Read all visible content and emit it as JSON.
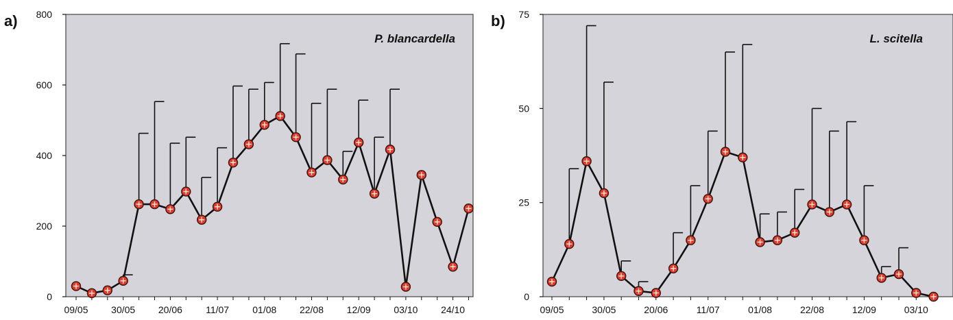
{
  "chart_data": [
    {
      "type": "line",
      "panel_label": "a)",
      "title": "P. blancardella",
      "xlabel": "",
      "ylabel": "",
      "ylim": [
        0,
        800
      ],
      "yticks": [
        "0",
        "200",
        "400",
        "600",
        "800"
      ],
      "x_tick_labels": [
        "09/05",
        "30/05",
        "20/06",
        "11/07",
        "01/08",
        "22/08",
        "12/09",
        "03/10",
        "24/10"
      ],
      "grid": false,
      "plot_background": "#d5d4da",
      "line_color": "#111111",
      "marker_color": "#e23b2a",
      "series": [
        {
          "x": [
            "09/05",
            "16/05",
            "23/05",
            "30/05",
            "06/06",
            "13/06",
            "20/06",
            "27/06",
            "04/07",
            "11/07",
            "18/07",
            "25/07",
            "01/08",
            "08/08",
            "15/08",
            "22/08",
            "29/08",
            "05/09",
            "12/09",
            "19/09",
            "26/09",
            "03/10",
            "10/10",
            "17/10",
            "24/10",
            "31/10"
          ],
          "values": [
            30,
            10,
            18,
            45,
            262,
            262,
            248,
            298,
            218,
            255,
            380,
            432,
            487,
            512,
            452,
            352,
            387,
            332,
            437,
            292,
            417,
            28,
            345,
            212,
            85,
            250
          ],
          "error_upper": [
            null,
            null,
            null,
            62,
            463,
            553,
            435,
            452,
            338,
            422,
            597,
            588,
            607,
            717,
            688,
            548,
            588,
            412,
            557,
            452,
            588,
            null,
            null,
            null,
            null,
            null
          ]
        }
      ]
    },
    {
      "type": "line",
      "panel_label": "b)",
      "title": "L. scitella",
      "xlabel": "",
      "ylabel": "",
      "ylim": [
        0,
        75
      ],
      "yticks": [
        "0",
        "25",
        "50",
        "75"
      ],
      "x_tick_labels": [
        "09/05",
        "30/05",
        "20/06",
        "11/07",
        "01/08",
        "22/08",
        "12/09",
        "03/10"
      ],
      "grid": false,
      "plot_background": "#d5d4da",
      "line_color": "#111111",
      "marker_color": "#e23b2a",
      "series": [
        {
          "x": [
            "09/05",
            "16/05",
            "23/05",
            "30/05",
            "06/06",
            "13/06",
            "20/06",
            "27/06",
            "04/07",
            "11/07",
            "18/07",
            "25/07",
            "01/08",
            "08/08",
            "15/08",
            "22/08",
            "29/08",
            "05/09",
            "12/09",
            "19/09",
            "26/09",
            "03/10",
            "10/10"
          ],
          "values": [
            4,
            14,
            36,
            27.5,
            5.5,
            1.5,
            1,
            7.5,
            15,
            26,
            38.5,
            37,
            14.5,
            15,
            17,
            24.5,
            22.5,
            24.5,
            15,
            5,
            6,
            1,
            0
          ],
          "error_upper": [
            null,
            34,
            72,
            57,
            9.5,
            4,
            null,
            17,
            29.5,
            44,
            65,
            67,
            22,
            22.5,
            28.5,
            50,
            44,
            46.5,
            29.5,
            8,
            13,
            null,
            null
          ]
        }
      ]
    }
  ]
}
